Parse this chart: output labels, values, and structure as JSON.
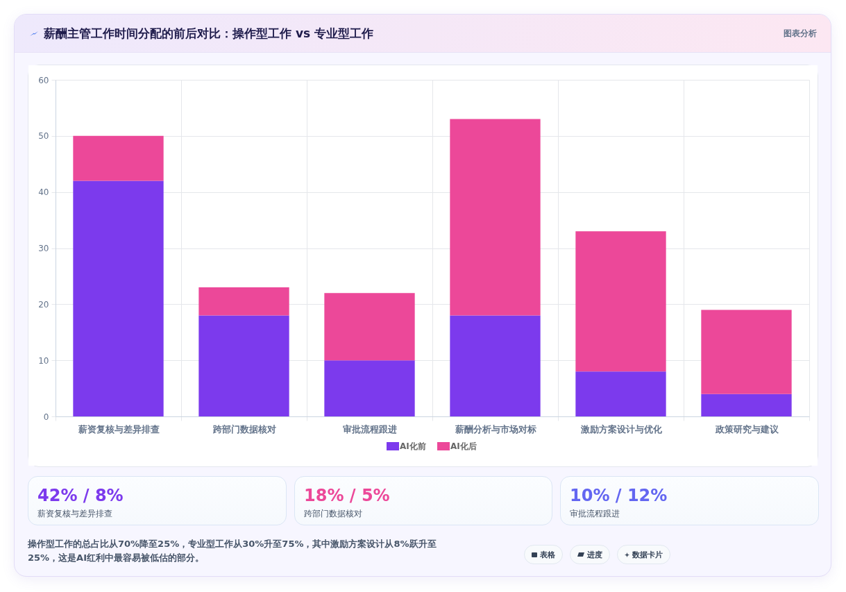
{
  "chart_data": {
    "type": "bar",
    "title": "薪酬主管工作时间分配的前后对比：操作型工作 vs 专业型工作",
    "categories": [
      "薪资复核与差异排查",
      "跨部门数据核对",
      "审批流程跟进",
      "薪酬分析与市场对标",
      "激励方案设计与优化",
      "政策研究与建议"
    ],
    "series": [
      {
        "name": "AI化前",
        "color": "#7c3aed",
        "values": [
          42,
          18,
          10,
          18,
          8,
          4
        ]
      },
      {
        "name": "AI化后",
        "color": "#ec4899",
        "values": [
          8,
          5,
          12,
          35,
          25,
          15
        ]
      }
    ],
    "stacked": true,
    "ylim": [
      0,
      60
    ],
    "yticks": [
      0,
      10,
      20,
      30,
      40,
      50,
      60
    ],
    "grid": true,
    "legend": "bottom",
    "annotations": [
      "图表分析",
      "42% / 8%\n薪资复核与差异排查",
      "18% / 5%\n跨部门数据核对",
      "10% / 12%\n审批流程跟进",
      "操作型工作的总占比从70%降至25%，专业型工作从30%升至75%，其中激励方案设计从8%跃升至25%，这是AI红利中最容易被低估的部分。",
      "表格",
      "进度",
      "数据卡片"
    ]
  }
}
